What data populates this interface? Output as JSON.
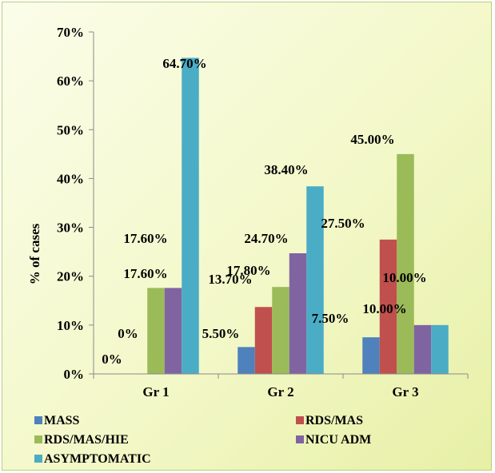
{
  "chart_data": {
    "type": "bar",
    "title": "",
    "xlabel": "",
    "ylabel": "% of cases",
    "ylim": [
      0,
      70
    ],
    "yticks": [
      "0%",
      "10%",
      "20%",
      "30%",
      "40%",
      "50%",
      "60%",
      "70%"
    ],
    "categories": [
      "Gr 1",
      "Gr 2",
      "Gr 3"
    ],
    "series": [
      {
        "name": "MASS",
        "color": "#4f81bd",
        "values": [
          0,
          5.5,
          7.5
        ],
        "labels": [
          "0%",
          "5.50%",
          "7.50%"
        ]
      },
      {
        "name": "RDS/MAS",
        "color": "#c0504d",
        "values": [
          0,
          13.7,
          27.5
        ],
        "labels": [
          "0%",
          "13.70%",
          "27.50%"
        ]
      },
      {
        "name": "RDS/MAS/HIE",
        "color": "#9bbb59",
        "values": [
          17.6,
          17.8,
          45.0
        ],
        "labels": [
          "17.60%",
          "17.80%",
          "45.00%"
        ]
      },
      {
        "name": "NICU ADM",
        "color": "#8064a2",
        "values": [
          17.6,
          24.7,
          10.0
        ],
        "labels": [
          "17.60%",
          "24.70%",
          "10.00%"
        ]
      },
      {
        "name": "ASYMPTOMATIC",
        "color": "#4bacc6",
        "values": [
          64.7,
          38.4,
          10.0
        ],
        "labels": [
          "64.70%",
          "38.40%",
          "10.00%"
        ]
      }
    ],
    "grid": false,
    "legend": "bottom"
  }
}
